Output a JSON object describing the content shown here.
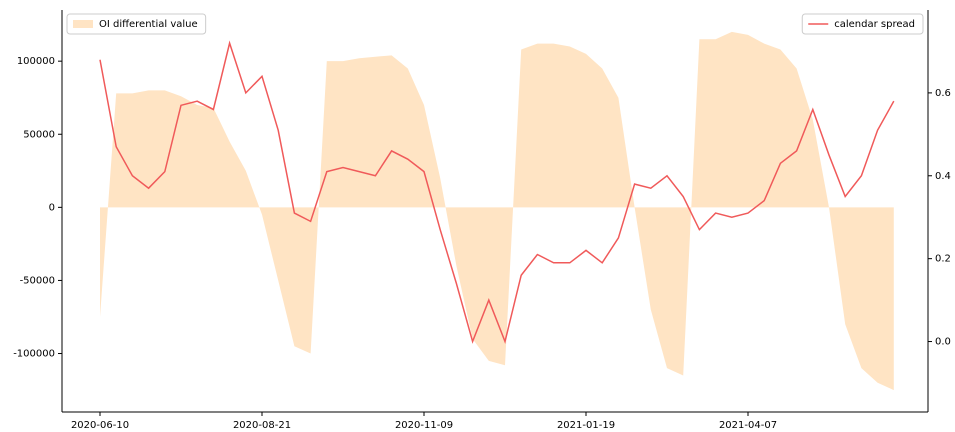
{
  "chart_data": {
    "type": "area-line",
    "categories": [
      "2020-06-10",
      null,
      null,
      null,
      null,
      null,
      null,
      null,
      null,
      null,
      "2020-08-21",
      null,
      null,
      null,
      null,
      null,
      null,
      null,
      null,
      null,
      "2020-11-09",
      null,
      null,
      null,
      null,
      null,
      null,
      null,
      null,
      null,
      "2021-01-19",
      null,
      null,
      null,
      null,
      null,
      null,
      null,
      null,
      null,
      "2021-04-07",
      null,
      null,
      null,
      null,
      null,
      null,
      null,
      null,
      null
    ],
    "series": [
      {
        "name": "OI differential value",
        "color": "#ffe4c4",
        "axis": "y",
        "values": [
          -75000,
          78000,
          78000,
          80000,
          80000,
          76000,
          70000,
          68000,
          45000,
          25000,
          -5000,
          -50000,
          -95000,
          -100000,
          100000,
          100000,
          102000,
          103000,
          104000,
          95000,
          70000,
          20000,
          -40000,
          -90000,
          -105000,
          -108000,
          108000,
          112000,
          112000,
          110000,
          105000,
          95000,
          75000,
          0,
          -70000,
          -110000,
          -115000,
          115000,
          115000,
          120000,
          118000,
          112000,
          108000,
          95000,
          60000,
          0,
          -80000,
          -110000,
          -120000,
          -125000
        ]
      },
      {
        "name": "calendar spread",
        "color": "#f05a5a",
        "axis": "y2",
        "values": [
          0.68,
          0.47,
          0.4,
          0.37,
          0.41,
          0.57,
          0.58,
          0.56,
          0.72,
          0.6,
          0.64,
          0.51,
          0.31,
          0.29,
          0.41,
          0.42,
          0.41,
          0.4,
          0.46,
          0.44,
          0.41,
          0.27,
          0.14,
          0.0,
          0.1,
          0.0,
          0.16,
          0.21,
          0.19,
          0.19,
          0.22,
          0.19,
          0.25,
          0.38,
          0.37,
          0.4,
          0.35,
          0.27,
          0.31,
          0.3,
          0.31,
          0.34,
          0.43,
          0.46,
          0.56,
          0.45,
          0.35,
          0.4,
          0.51,
          0.58
        ]
      }
    ],
    "ylim": [
      -140000,
      135000
    ],
    "yticks": [
      -100000,
      -50000,
      0,
      50000,
      100000
    ],
    "y2lim": [
      -0.17,
      0.8
    ],
    "y2ticks": [
      {
        "value": 0,
        "label": "0.0"
      },
      0.2,
      0.4,
      0.6
    ]
  }
}
